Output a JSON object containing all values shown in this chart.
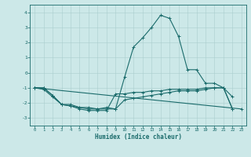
{
  "x": [
    0,
    1,
    2,
    3,
    4,
    5,
    6,
    7,
    8,
    9,
    10,
    11,
    12,
    13,
    14,
    15,
    16,
    17,
    18,
    19,
    20,
    21,
    22,
    23
  ],
  "line1": [
    -1.0,
    -1.0,
    -1.5,
    -2.1,
    -2.2,
    -2.3,
    -2.4,
    -2.4,
    -2.4,
    -2.4,
    -0.3,
    1.7,
    2.3,
    3.0,
    3.8,
    3.6,
    2.4,
    0.2,
    0.2,
    -0.7,
    -0.7,
    -1.0,
    -1.6,
    null
  ],
  "line2": [
    -1.0,
    -1.1,
    -1.6,
    -2.1,
    -2.2,
    -2.4,
    -2.5,
    -2.5,
    -2.5,
    -1.4,
    -1.4,
    -1.3,
    -1.3,
    -1.2,
    -1.2,
    -1.1,
    -1.1,
    -1.1,
    -1.1,
    -1.0,
    -1.0,
    -1.0,
    -2.4,
    null
  ],
  "line3": [
    -1.0,
    -1.0,
    -1.5,
    -2.1,
    -2.1,
    -2.3,
    -2.3,
    -2.4,
    -2.3,
    -2.4,
    -1.8,
    -1.7,
    -1.6,
    -1.5,
    -1.4,
    -1.3,
    -1.2,
    -1.2,
    -1.2,
    -1.1,
    -1.0,
    -1.0,
    -2.4,
    null
  ],
  "line4_x": [
    0,
    23
  ],
  "line4_y": [
    -1.0,
    -2.4
  ],
  "background_color": "#cce8e8",
  "grid_color": "#aacece",
  "line_color": "#1a6b6b",
  "xlabel": "Humidex (Indice chaleur)",
  "ylim": [
    -3.5,
    4.5
  ],
  "yticks": [
    -3,
    -2,
    -1,
    0,
    1,
    2,
    3,
    4
  ],
  "xticks": [
    0,
    1,
    2,
    3,
    4,
    5,
    6,
    7,
    8,
    9,
    10,
    11,
    12,
    13,
    14,
    15,
    16,
    17,
    18,
    19,
    20,
    21,
    22,
    23
  ]
}
